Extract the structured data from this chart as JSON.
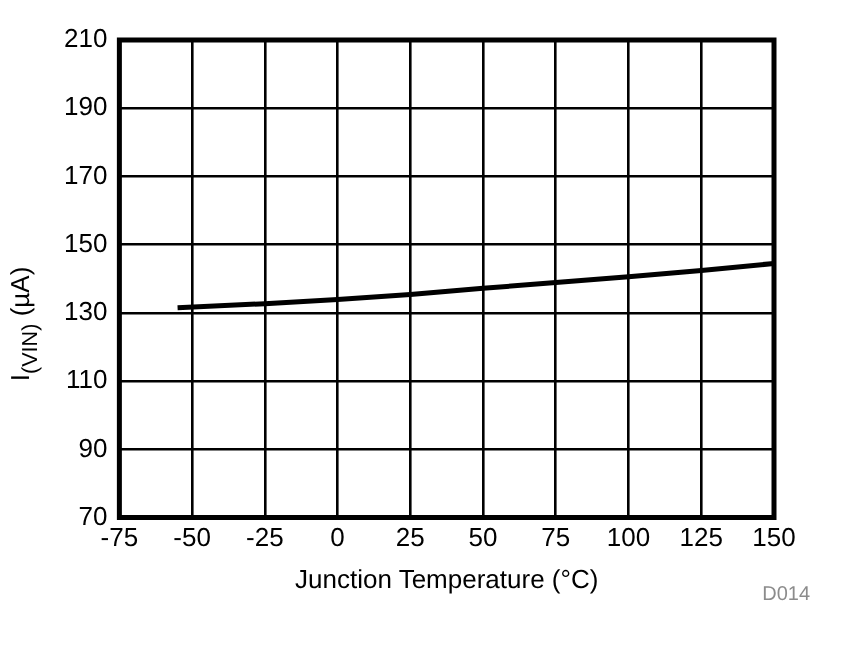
{
  "chart_data": {
    "type": "line",
    "xlabel": "Junction Temperature (°C)",
    "ylabel": "I$_{(VIN)}$ (µA)",
    "x": [
      -55,
      -25,
      0,
      25,
      50,
      75,
      100,
      125,
      150
    ],
    "series": [
      {
        "color": "#000000",
        "values": [
          131.5,
          132.7,
          133.9,
          135.4,
          137.2,
          138.9,
          140.6,
          142.4,
          144.5
        ]
      }
    ],
    "xlim": [
      -75,
      150
    ],
    "xticks": [
      -75,
      -50,
      -25,
      0,
      25,
      50,
      75,
      100,
      125,
      150
    ],
    "ylim": [
      70,
      210
    ],
    "yticks": [
      70,
      90,
      110,
      130,
      150,
      170,
      190,
      210
    ],
    "grid": true,
    "legend": false,
    "marker": "none",
    "line_style": "solid",
    "annotations": [
      "D014"
    ]
  }
}
